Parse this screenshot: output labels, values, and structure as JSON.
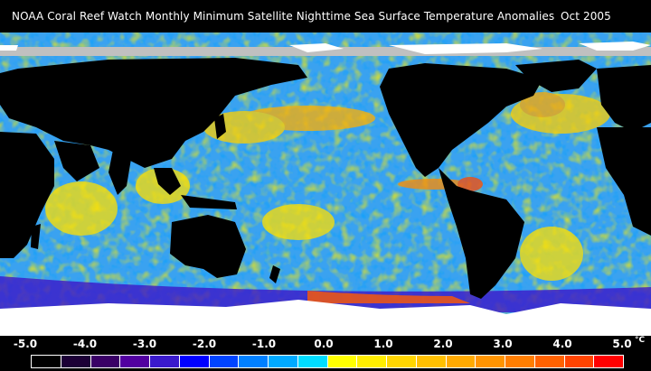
{
  "title": {
    "text": "NOAA Coral Reef Watch Monthly Minimum Satellite Nighttime Sea Surface Temperature Anomalies",
    "date": "Oct 2005"
  },
  "colors": {
    "land": "#000000",
    "ice": "#ffffff",
    "missing": "#c0c0c0"
  },
  "legend": {
    "tick_labels": [
      "-5.0",
      "-4.0",
      "-3.0",
      "-2.0",
      "-1.0",
      "0.0",
      "1.0",
      "2.0",
      "3.0",
      "4.0",
      "5.0"
    ],
    "unit": "°C",
    "swatches": [
      "#000000",
      "#1c0036",
      "#3a0066",
      "#5200a0",
      "#3a1acc",
      "#0000ff",
      "#0044ff",
      "#0080ff",
      "#00aaff",
      "#00ddff",
      "#ffff00",
      "#ffee00",
      "#ffd600",
      "#ffc000",
      "#ffaa00",
      "#ff9400",
      "#ff7e00",
      "#ff6200",
      "#ff4400",
      "#ff0000"
    ]
  }
}
